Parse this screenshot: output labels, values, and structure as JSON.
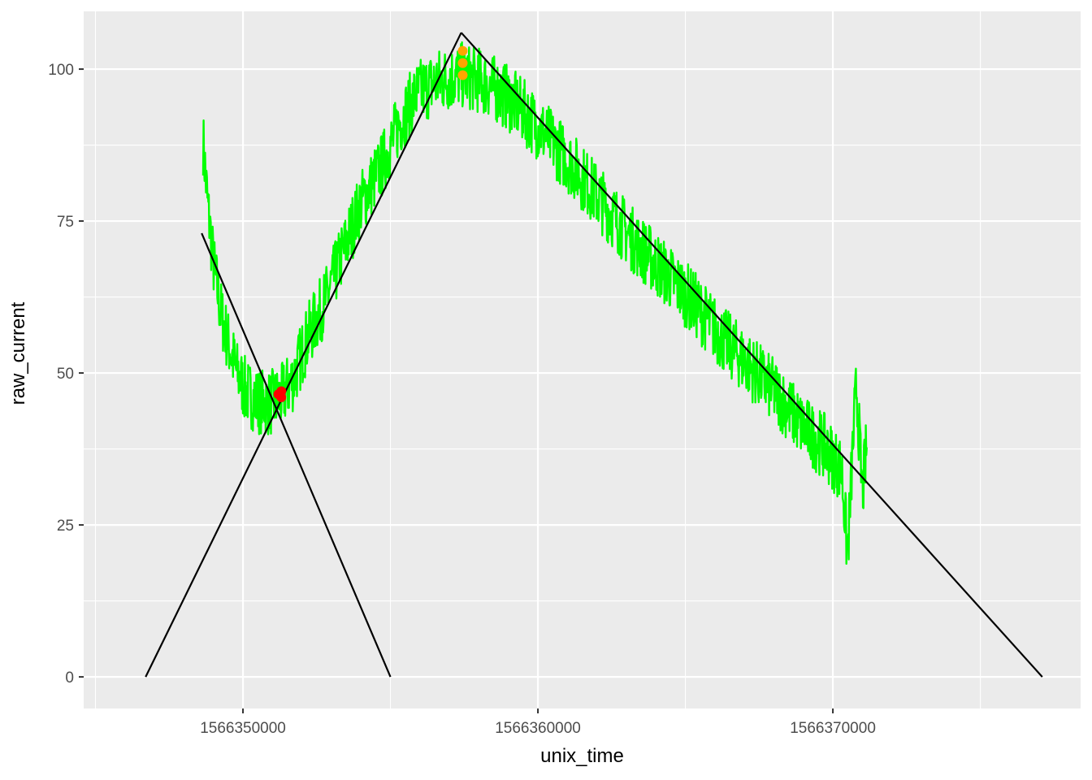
{
  "chart_data": {
    "type": "line",
    "xlabel": "unix_time",
    "ylabel": "raw_current",
    "xlim": [
      1566344600,
      1566378400
    ],
    "ylim": [
      -5.2,
      109.5
    ],
    "x_ticks": [
      1566350000,
      1566360000,
      1566370000
    ],
    "y_ticks": [
      0,
      25,
      50,
      75,
      100
    ],
    "grid": true,
    "background": "#ebebeb",
    "colors": {
      "signal": "#00ff00",
      "trend_lines": "#000000",
      "trough_points": "#ff0000",
      "peak_points": "#ffa500"
    },
    "signal_profile": [
      [
        1566348650,
        88
      ],
      [
        1566348800,
        78
      ],
      [
        1566349000,
        68
      ],
      [
        1566349250,
        60
      ],
      [
        1566349500,
        55
      ],
      [
        1566349800,
        50
      ],
      [
        1566350100,
        47
      ],
      [
        1566350450,
        45.5
      ],
      [
        1566350900,
        45
      ],
      [
        1566351300,
        46
      ],
      [
        1566351700,
        49
      ],
      [
        1566352200,
        56
      ],
      [
        1566352800,
        62
      ],
      [
        1566353400,
        70
      ],
      [
        1566354000,
        78
      ],
      [
        1566354700,
        84
      ],
      [
        1566355300,
        91
      ],
      [
        1566355900,
        96
      ],
      [
        1566356600,
        98
      ],
      [
        1566357400,
        99
      ],
      [
        1566358100,
        98
      ],
      [
        1566358800,
        96
      ],
      [
        1566359500,
        93
      ],
      [
        1566360300,
        89
      ],
      [
        1566361200,
        84
      ],
      [
        1566362200,
        78
      ],
      [
        1566363200,
        72
      ],
      [
        1566364200,
        67
      ],
      [
        1566365200,
        62
      ],
      [
        1566366200,
        56
      ],
      [
        1566367200,
        51
      ],
      [
        1566368200,
        46
      ],
      [
        1566369000,
        41
      ],
      [
        1566369700,
        38
      ],
      [
        1566370300,
        34
      ],
      [
        1566370500,
        20
      ],
      [
        1566370700,
        40
      ],
      [
        1566370800,
        48
      ],
      [
        1566371000,
        30
      ],
      [
        1566371150,
        38
      ]
    ],
    "series": [
      {
        "values": [
          [
            1566346700,
            0
          ],
          [
            1566357400,
            106
          ]
        ]
      },
      {
        "values": [
          [
            1566357400,
            106
          ],
          [
            1566377100,
            0
          ]
        ]
      },
      {
        "values": [
          [
            1566348600,
            73
          ],
          [
            1566355000,
            0
          ]
        ]
      }
    ],
    "trough_points": [
      [
        1566351300,
        46
      ],
      [
        1566351300,
        47
      ],
      [
        1566351200,
        46.5
      ]
    ],
    "peak_points": [
      [
        1566357450,
        103
      ],
      [
        1566357450,
        101
      ],
      [
        1566357450,
        99
      ]
    ]
  }
}
